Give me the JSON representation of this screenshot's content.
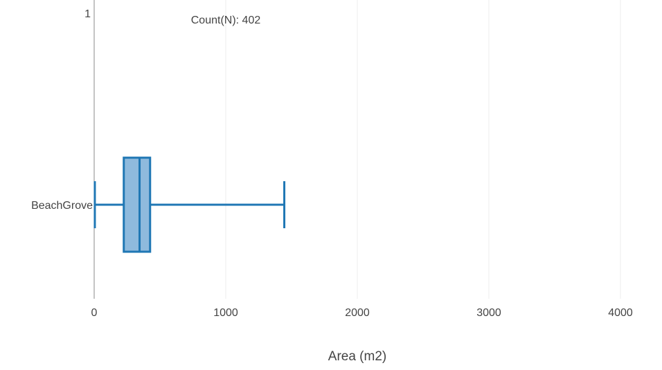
{
  "chart_data": {
    "type": "box",
    "orientation": "horizontal",
    "xlabel": "Area (m2)",
    "xlim": [
      0,
      4000
    ],
    "xticks": [
      0,
      1000,
      2000,
      3000,
      4000
    ],
    "corner_label": "1",
    "annotation": "Count(N): 402",
    "grid": true,
    "series": [
      {
        "name": "BeachGrove",
        "min": 5,
        "q1": 225,
        "median": 345,
        "q3": 425,
        "max": 1445
      }
    ],
    "colors": {
      "box_fill": "#8fbadd",
      "box_stroke": "#1f77b4",
      "axis_line": "#888888",
      "grid": "#eeeeee",
      "text": "#444444"
    }
  }
}
